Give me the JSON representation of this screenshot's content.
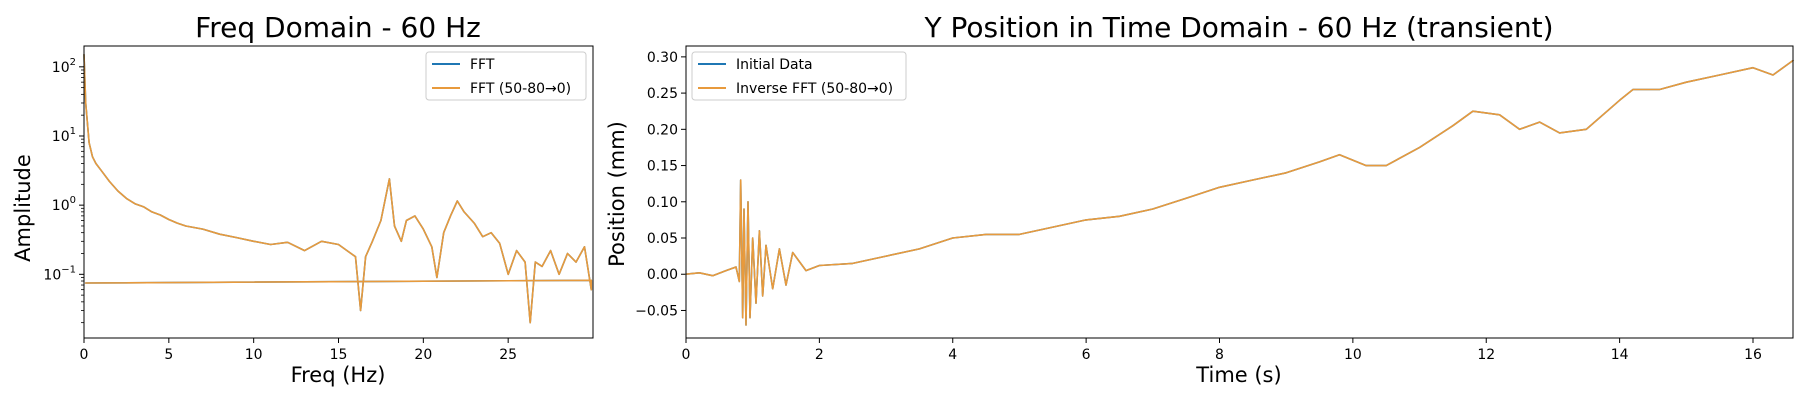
{
  "chart_data": [
    {
      "type": "line",
      "title": "Freq Domain - 60 Hz",
      "xlabel": "Freq (Hz)",
      "ylabel": "Amplitude",
      "xlim": [
        0,
        30
      ],
      "ylim": [
        0.012,
        200
      ],
      "yscale": "log",
      "x_ticks": [
        {
          "value": 0,
          "label": "0"
        },
        {
          "value": 5,
          "label": "5"
        },
        {
          "value": 10,
          "label": "10"
        },
        {
          "value": 15,
          "label": "15"
        },
        {
          "value": 20,
          "label": "20"
        },
        {
          "value": 25,
          "label": "25"
        }
      ],
      "y_ticks": [
        {
          "value": 100,
          "base": "10",
          "exp": "2"
        },
        {
          "value": 10,
          "base": "10",
          "exp": "1"
        },
        {
          "value": 1,
          "base": "10",
          "exp": "0"
        },
        {
          "value": 0.1,
          "base": "10",
          "exp": "−1"
        }
      ],
      "legend_position": "upper right",
      "grid": false,
      "series": [
        {
          "name": "FFT",
          "color": "#1f77b4",
          "x": [
            0,
            0.1,
            0.3,
            0.5,
            0.7,
            1,
            1.5,
            2,
            2.5,
            3,
            3.5,
            4,
            4.5,
            5,
            5.5,
            6,
            7,
            8,
            9,
            10,
            11,
            12,
            13,
            14,
            15,
            15.5,
            16,
            16.3,
            16.6,
            17,
            17.5,
            18,
            18.3,
            18.7,
            19,
            19.5,
            20,
            20.5,
            20.8,
            21.2,
            21.6,
            22,
            22.4,
            23,
            23.5,
            24,
            24.5,
            25,
            25.5,
            26,
            26.3,
            26.6,
            27,
            27.5,
            28,
            28.5,
            29,
            29.5,
            29.9,
            29.9,
            29.9,
            0.1
          ],
          "y": [
            150,
            30,
            8,
            5,
            4,
            3.2,
            2.2,
            1.6,
            1.25,
            1.05,
            0.95,
            0.8,
            0.72,
            0.62,
            0.55,
            0.5,
            0.45,
            0.38,
            0.34,
            0.3,
            0.27,
            0.29,
            0.22,
            0.3,
            0.27,
            0.22,
            0.18,
            0.03,
            0.18,
            0.3,
            0.6,
            2.4,
            0.5,
            0.3,
            0.6,
            0.7,
            0.45,
            0.25,
            0.09,
            0.4,
            0.7,
            1.15,
            0.8,
            0.55,
            0.35,
            0.4,
            0.28,
            0.1,
            0.22,
            0.15,
            0.02,
            0.15,
            0.13,
            0.22,
            0.1,
            0.2,
            0.15,
            0.25,
            0.06,
            0.06,
            0.082,
            0.075
          ]
        },
        {
          "name": "FFT (50-80→0)",
          "color": "#e89a3c",
          "x": [
            0,
            0.1,
            0.3,
            0.5,
            0.7,
            1,
            1.5,
            2,
            2.5,
            3,
            3.5,
            4,
            4.5,
            5,
            5.5,
            6,
            7,
            8,
            9,
            10,
            11,
            12,
            13,
            14,
            15,
            15.5,
            16,
            16.3,
            16.6,
            17,
            17.5,
            18,
            18.3,
            18.7,
            19,
            19.5,
            20,
            20.5,
            20.8,
            21.2,
            21.6,
            22,
            22.4,
            23,
            23.5,
            24,
            24.5,
            25,
            25.5,
            26,
            26.3,
            26.6,
            27,
            27.5,
            28,
            28.5,
            29,
            29.5,
            29.9,
            29.9,
            29.9,
            0.1
          ],
          "y": [
            150,
            30,
            8,
            5,
            4,
            3.2,
            2.2,
            1.6,
            1.25,
            1.05,
            0.95,
            0.8,
            0.72,
            0.62,
            0.55,
            0.5,
            0.45,
            0.38,
            0.34,
            0.3,
            0.27,
            0.29,
            0.22,
            0.3,
            0.27,
            0.22,
            0.18,
            0.03,
            0.18,
            0.3,
            0.6,
            2.4,
            0.5,
            0.3,
            0.6,
            0.7,
            0.45,
            0.25,
            0.09,
            0.4,
            0.7,
            1.15,
            0.8,
            0.55,
            0.35,
            0.4,
            0.28,
            0.1,
            0.22,
            0.15,
            0.02,
            0.15,
            0.13,
            0.22,
            0.1,
            0.2,
            0.15,
            0.25,
            0.06,
            0.06,
            0.082,
            0.075
          ]
        }
      ]
    },
    {
      "type": "line",
      "title": "Y Position in Time Domain - 60 Hz (transient)",
      "xlabel": "Time (s)",
      "ylabel": "Position (mm)",
      "xlim": [
        0,
        16.6
      ],
      "ylim": [
        -0.088,
        0.315
      ],
      "yscale": "linear",
      "x_ticks": [
        {
          "value": 0,
          "label": "0"
        },
        {
          "value": 2,
          "label": "2"
        },
        {
          "value": 4,
          "label": "4"
        },
        {
          "value": 6,
          "label": "6"
        },
        {
          "value": 8,
          "label": "8"
        },
        {
          "value": 10,
          "label": "10"
        },
        {
          "value": 12,
          "label": "12"
        },
        {
          "value": 14,
          "label": "14"
        },
        {
          "value": 16,
          "label": "16"
        }
      ],
      "y_ticks": [
        {
          "value": -0.05,
          "label": "−0.05"
        },
        {
          "value": 0,
          "label": "0.00"
        },
        {
          "value": 0.05,
          "label": "0.05"
        },
        {
          "value": 0.1,
          "label": "0.10"
        },
        {
          "value": 0.15,
          "label": "0.15"
        },
        {
          "value": 0.2,
          "label": "0.20"
        },
        {
          "value": 0.25,
          "label": "0.25"
        },
        {
          "value": 0.3,
          "label": "0.30"
        }
      ],
      "legend_position": "upper left",
      "grid": false,
      "series": [
        {
          "name": "Initial Data",
          "color": "#1f77b4",
          "x": [
            0,
            0.2,
            0.4,
            0.6,
            0.75,
            0.8,
            0.82,
            0.85,
            0.87,
            0.9,
            0.93,
            0.96,
            1,
            1.05,
            1.1,
            1.15,
            1.2,
            1.3,
            1.4,
            1.5,
            1.6,
            1.8,
            2,
            2.5,
            3,
            3.5,
            4,
            4.5,
            5,
            5.5,
            6,
            6.5,
            7,
            7.5,
            8,
            8.5,
            9,
            9.5,
            9.8,
            10.2,
            10.5,
            11,
            11.5,
            11.8,
            12.2,
            12.5,
            12.8,
            13.1,
            13.5,
            14,
            14.2,
            14.6,
            15,
            15.5,
            16,
            16.3,
            16.6
          ],
          "y": [
            0,
            0.002,
            -0.002,
            0.005,
            0.01,
            -0.01,
            0.13,
            -0.06,
            0.09,
            -0.07,
            0.1,
            -0.06,
            0.05,
            -0.04,
            0.06,
            -0.03,
            0.04,
            -0.02,
            0.035,
            -0.015,
            0.03,
            0.005,
            0.012,
            0.015,
            0.025,
            0.035,
            0.05,
            0.055,
            0.055,
            0.065,
            0.075,
            0.08,
            0.09,
            0.105,
            0.12,
            0.13,
            0.14,
            0.155,
            0.165,
            0.15,
            0.15,
            0.175,
            0.205,
            0.225,
            0.22,
            0.2,
            0.21,
            0.195,
            0.2,
            0.24,
            0.255,
            0.255,
            0.265,
            0.275,
            0.285,
            0.275,
            0.295
          ]
        },
        {
          "name": "Inverse FFT (50-80→0)",
          "color": "#e89a3c",
          "x": [
            0,
            0.2,
            0.4,
            0.6,
            0.75,
            0.8,
            0.82,
            0.85,
            0.87,
            0.9,
            0.93,
            0.96,
            1,
            1.05,
            1.1,
            1.15,
            1.2,
            1.3,
            1.4,
            1.5,
            1.6,
            1.8,
            2,
            2.5,
            3,
            3.5,
            4,
            4.5,
            5,
            5.5,
            6,
            6.5,
            7,
            7.5,
            8,
            8.5,
            9,
            9.5,
            9.8,
            10.2,
            10.5,
            11,
            11.5,
            11.8,
            12.2,
            12.5,
            12.8,
            13.1,
            13.5,
            14,
            14.2,
            14.6,
            15,
            15.5,
            16,
            16.3,
            16.6
          ],
          "y": [
            0,
            0.002,
            -0.002,
            0.005,
            0.01,
            -0.01,
            0.13,
            -0.06,
            0.09,
            -0.07,
            0.1,
            -0.06,
            0.05,
            -0.04,
            0.06,
            -0.03,
            0.04,
            -0.02,
            0.035,
            -0.015,
            0.03,
            0.005,
            0.012,
            0.015,
            0.025,
            0.035,
            0.05,
            0.055,
            0.055,
            0.065,
            0.075,
            0.08,
            0.09,
            0.105,
            0.12,
            0.13,
            0.14,
            0.155,
            0.165,
            0.15,
            0.15,
            0.175,
            0.205,
            0.225,
            0.22,
            0.2,
            0.21,
            0.195,
            0.2,
            0.24,
            0.255,
            0.255,
            0.265,
            0.275,
            0.285,
            0.275,
            0.295
          ]
        }
      ]
    }
  ]
}
